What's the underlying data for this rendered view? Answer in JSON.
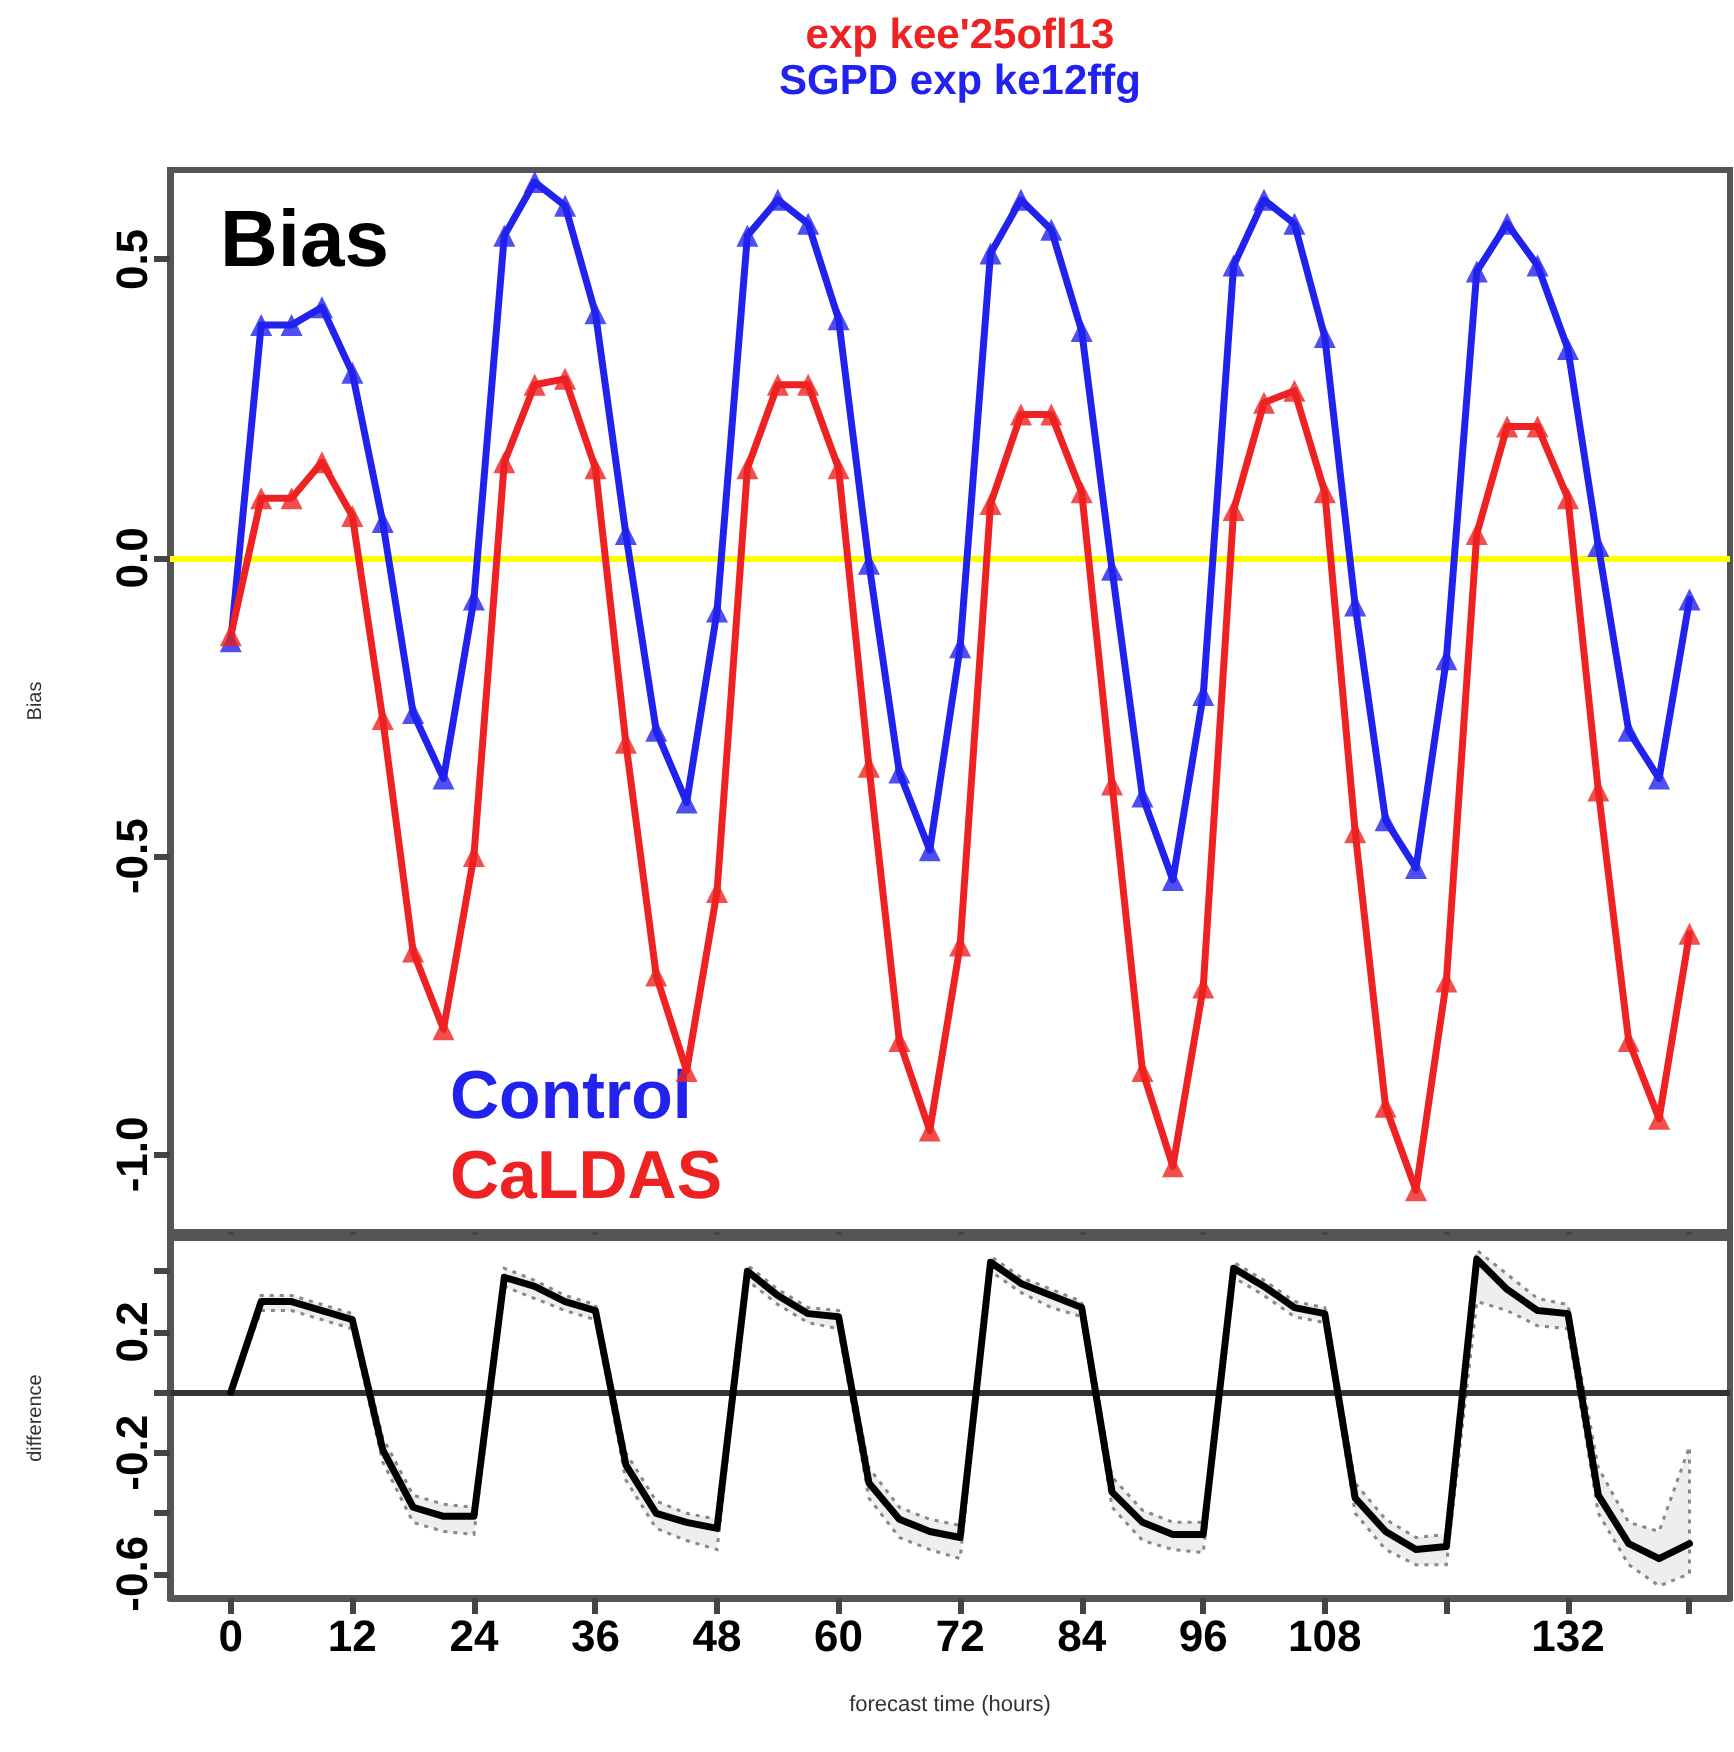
{
  "chart_data": [
    {
      "type": "line",
      "title": "exp kee'25ofl13",
      "subtitle": "SGPD exp ke12ffg",
      "ylabel": "Bias",
      "annotations": [
        "Bias"
      ],
      "marker": "triangle",
      "legend": "bottom left",
      "tick_labels": "y",
      "grid": false,
      "x": [
        0,
        3,
        6,
        9,
        12,
        15,
        18,
        21,
        24,
        27,
        30,
        33,
        36,
        39,
        42,
        45,
        48,
        51,
        54,
        57,
        60,
        63,
        66,
        69,
        72,
        75,
        78,
        81,
        84,
        87,
        90,
        93,
        96,
        99,
        102,
        105,
        108,
        111,
        114,
        117,
        120,
        123,
        126,
        129,
        132,
        135,
        138,
        141,
        144
      ],
      "xlim": [
        -6,
        148
      ],
      "xticks": [
        0,
        12,
        24,
        36,
        48,
        60,
        72,
        84,
        96,
        108,
        120,
        132,
        144
      ],
      "ylim": [
        -1.13,
        0.65
      ],
      "yticks": [
        {
          "value": -1,
          "label": "-1.0"
        },
        {
          "value": -0.5,
          "label": "-0.5"
        },
        {
          "value": 0,
          "label": "0.0"
        },
        {
          "value": 0.5,
          "label": "0.5"
        }
      ],
      "ref_lines": [
        {
          "axis": "y",
          "value": 0,
          "color": "#ffff00"
        }
      ],
      "series": [
        {
          "name": "Control",
          "color": "#2222ee",
          "values": [
            -0.14,
            0.39,
            0.39,
            0.42,
            0.31,
            0.06,
            -0.26,
            -0.37,
            -0.07,
            0.54,
            0.63,
            0.59,
            0.41,
            0.04,
            -0.29,
            -0.41,
            -0.09,
            0.54,
            0.6,
            0.56,
            0.4,
            -0.01,
            -0.36,
            -0.49,
            -0.15,
            0.51,
            0.6,
            0.55,
            0.38,
            -0.02,
            -0.4,
            -0.54,
            -0.23,
            0.49,
            0.6,
            0.56,
            0.37,
            -0.08,
            -0.44,
            -0.52,
            -0.17,
            0.48,
            0.56,
            0.49,
            0.35,
            0.02,
            -0.29,
            -0.37,
            -0.07
          ]
        },
        {
          "name": "CaLDAS",
          "color": "#ee2222",
          "values": [
            -0.13,
            0.1,
            0.1,
            0.16,
            0.07,
            -0.27,
            -0.66,
            -0.79,
            -0.5,
            0.16,
            0.29,
            0.3,
            0.15,
            -0.31,
            -0.7,
            -0.86,
            -0.56,
            0.15,
            0.29,
            0.29,
            0.15,
            -0.35,
            -0.81,
            -0.96,
            -0.65,
            0.09,
            0.24,
            0.24,
            0.11,
            -0.38,
            -0.86,
            -1.02,
            -0.72,
            0.08,
            0.26,
            0.28,
            0.11,
            -0.46,
            -0.92,
            -1.06,
            -0.71,
            0.04,
            0.22,
            0.22,
            0.1,
            -0.39,
            -0.81,
            -0.94,
            -0.63
          ]
        }
      ]
    },
    {
      "type": "line",
      "ylabel": "difference",
      "xlabel": "forecast time (hours)",
      "marker": "none",
      "grid": false,
      "x": [
        0,
        3,
        6,
        9,
        12,
        15,
        18,
        21,
        24,
        27,
        30,
        33,
        36,
        39,
        42,
        45,
        48,
        51,
        54,
        57,
        60,
        63,
        66,
        69,
        72,
        75,
        78,
        81,
        84,
        87,
        90,
        93,
        96,
        99,
        102,
        105,
        108,
        111,
        114,
        117,
        120,
        123,
        126,
        129,
        132,
        135,
        138,
        141,
        144
      ],
      "xlim": [
        -6,
        148
      ],
      "xticks": [
        0,
        12,
        24,
        36,
        48,
        60,
        72,
        84,
        96,
        108,
        {
          "value": 120,
          "label": null
        },
        132,
        {
          "value": 144,
          "label": null
        }
      ],
      "ylim": [
        -0.68,
        0.51
      ],
      "yticks": [
        {
          "value": 0.4,
          "label": null
        },
        0.2,
        {
          "value": 0,
          "label": null
        },
        -0.2,
        {
          "value": -0.4,
          "label": null
        },
        -0.6
      ],
      "ref_lines": [
        {
          "axis": "y",
          "value": 0,
          "color": "#333333"
        }
      ],
      "series": [
        {
          "color": "#000000",
          "values": [
            0,
            0.3,
            0.3,
            0.27,
            0.24,
            -0.19,
            -0.38,
            -0.41,
            -0.41,
            0.38,
            0.35,
            0.3,
            0.27,
            -0.24,
            -0.4,
            -0.43,
            -0.45,
            0.4,
            0.32,
            0.26,
            0.25,
            -0.3,
            -0.42,
            -0.46,
            -0.48,
            0.43,
            0.36,
            0.32,
            0.28,
            -0.33,
            -0.43,
            -0.47,
            -0.47,
            0.41,
            0.35,
            0.28,
            0.26,
            -0.35,
            -0.46,
            -0.52,
            -0.51,
            0.44,
            0.34,
            0.27,
            0.26,
            -0.34,
            -0.5,
            -0.55,
            -0.5
          ],
          "upper": [
            0,
            0.32,
            0.32,
            0.29,
            0.26,
            -0.15,
            -0.34,
            -0.37,
            -0.38,
            0.41,
            0.37,
            0.32,
            0.29,
            -0.2,
            -0.36,
            -0.4,
            -0.42,
            0.42,
            0.34,
            0.28,
            0.27,
            -0.25,
            -0.38,
            -0.42,
            -0.44,
            0.45,
            0.38,
            0.34,
            0.3,
            -0.28,
            -0.39,
            -0.43,
            -0.43,
            0.43,
            0.37,
            0.3,
            0.28,
            -0.3,
            -0.42,
            -0.48,
            -0.47,
            0.47,
            0.39,
            0.31,
            0.29,
            -0.25,
            -0.43,
            -0.46,
            -0.18
          ],
          "lower": [
            0,
            0.27,
            0.27,
            0.24,
            0.21,
            -0.23,
            -0.43,
            -0.46,
            -0.47,
            0.35,
            0.31,
            0.27,
            0.24,
            -0.29,
            -0.45,
            -0.49,
            -0.52,
            0.37,
            0.29,
            0.23,
            0.21,
            -0.35,
            -0.48,
            -0.52,
            -0.55,
            0.4,
            0.33,
            0.28,
            0.25,
            -0.38,
            -0.49,
            -0.52,
            -0.53,
            0.38,
            0.32,
            0.25,
            0.23,
            -0.4,
            -0.52,
            -0.57,
            -0.57,
            0.3,
            0.27,
            0.22,
            0.21,
            -0.4,
            -0.57,
            -0.64,
            -0.6
          ]
        }
      ]
    }
  ]
}
